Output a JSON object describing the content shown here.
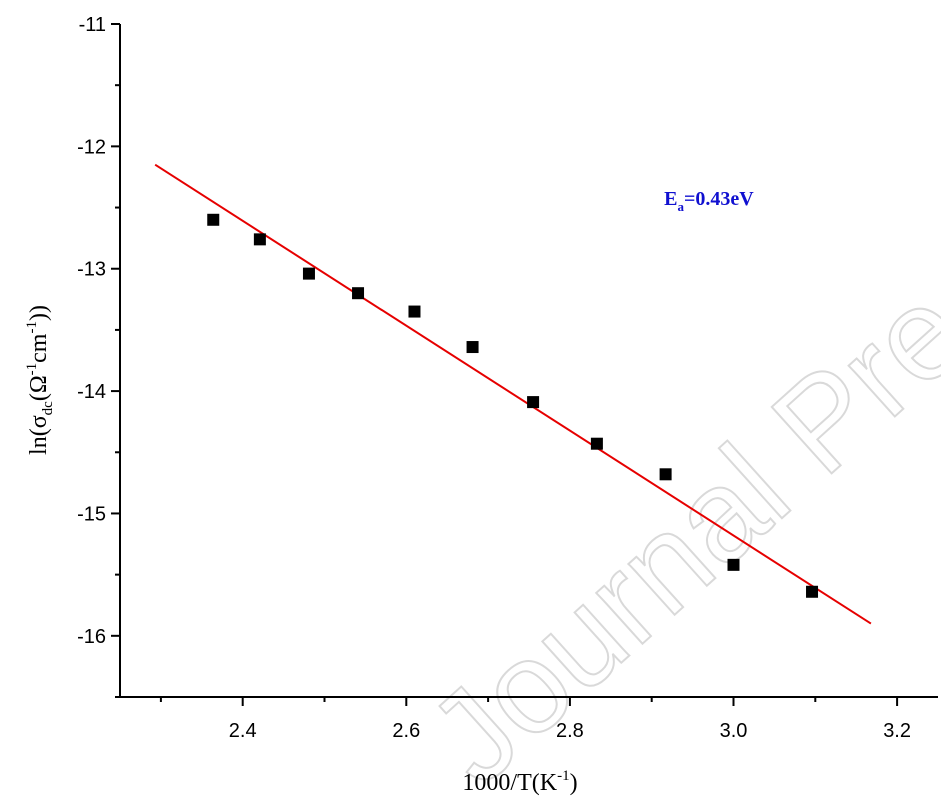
{
  "chart_data": {
    "type": "scatter",
    "xlabel": "1000/T(K",
    "xlabel_sup": "-1",
    "xlabel_end": ")",
    "ylabel": {
      "prefix": "ln(σ",
      "sub": "dc",
      "mid1": "(Ω",
      "sup1": "-1",
      "mid2": "cm",
      "sup2": "-1",
      "suffix": "))"
    },
    "xlim": [
      2.25,
      3.25
    ],
    "ylim": [
      -16.5,
      -11
    ],
    "x_ticks": [
      2.4,
      2.6,
      2.8,
      3.0,
      3.2
    ],
    "x_tick_labels": [
      "2.4",
      "2.6",
      "2.8",
      "3.0",
      "3.2"
    ],
    "y_ticks": [
      -11,
      -12,
      -13,
      -14,
      -15,
      -16
    ],
    "y_tick_labels": [
      "-11",
      "-12",
      "-13",
      "-14",
      "-15",
      "-16"
    ],
    "grid": false,
    "legend": "none",
    "series": [
      {
        "kind": "points",
        "color": "#000000",
        "x": [
          2.364,
          2.421,
          2.481,
          2.541,
          2.61,
          2.681,
          2.755,
          2.833,
          2.917,
          3.0,
          3.096
        ],
        "y": [
          -12.6,
          -12.76,
          -13.04,
          -13.2,
          -13.35,
          -13.64,
          -14.09,
          -14.43,
          -14.68,
          -15.42,
          -15.64
        ]
      },
      {
        "kind": "fit-line",
        "color": "#e60000",
        "x": [
          2.293,
          3.168
        ],
        "y": [
          -12.15,
          -15.9
        ]
      }
    ],
    "annotation": {
      "main": "E",
      "sub": "a",
      "rest": "=0.43eV",
      "color": "#1010d0",
      "x": 2.97,
      "y": -12.48
    }
  },
  "watermark": "Journal Pre-proof"
}
